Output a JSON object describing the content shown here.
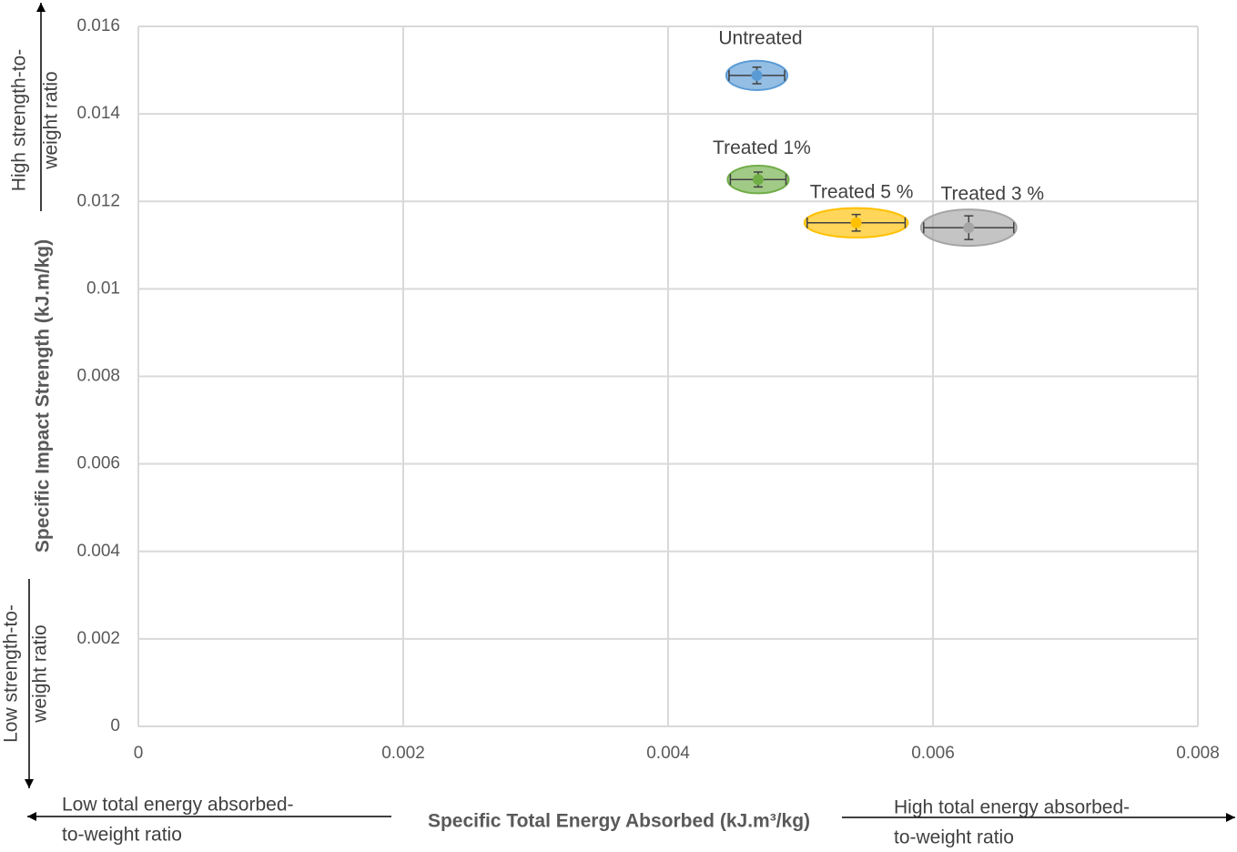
{
  "chart_data": {
    "type": "scatter",
    "x_label": "Specific Total Energy Absorbed (kJ.m³/kg)",
    "y_label": "Specific Impact Strength (kJ.m/kg)",
    "annotations": {
      "y_high": [
        "High strength-to-",
        "weight ratio"
      ],
      "y_low": [
        "Low strength-to-",
        "weight ratio"
      ],
      "x_low": [
        "Low total energy absorbed-",
        "to-weight ratio"
      ],
      "x_high": [
        "High total energy absorbed-",
        "to-weight ratio"
      ]
    },
    "xlim": [
      0,
      0.008
    ],
    "xticks": [
      0,
      0.002,
      0.004,
      0.006,
      0.008
    ],
    "ylim": [
      0,
      0.016
    ],
    "yticks": [
      0,
      0.002,
      0.004,
      0.006,
      0.008,
      0.01,
      0.012,
      0.014,
      0.016
    ],
    "grid": true,
    "series": [
      {
        "name": "Untreated",
        "color": "#5b9bd5",
        "x": [
          0.00467
        ],
        "values": [
          0.01488
        ],
        "x_errors": [
          0.00021
        ],
        "y_errors": [
          0.00019
        ]
      },
      {
        "name": "Treated 1%",
        "color": "#70ad47",
        "x": [
          0.00468
        ],
        "values": [
          0.0125
        ],
        "x_errors": [
          0.00021
        ],
        "y_errors": [
          0.00017
        ]
      },
      {
        "name": "Treated 5 %",
        "color": "#ffc000",
        "x": [
          0.00542
        ],
        "values": [
          0.01151
        ],
        "x_errors": [
          0.00037
        ],
        "y_errors": [
          0.00019
        ]
      },
      {
        "name": "Treated 3 %",
        "color": "#a5a5a5",
        "x": [
          0.00627
        ],
        "values": [
          0.0114
        ],
        "x_errors": [
          0.00034
        ],
        "y_errors": [
          0.00027
        ]
      }
    ]
  }
}
